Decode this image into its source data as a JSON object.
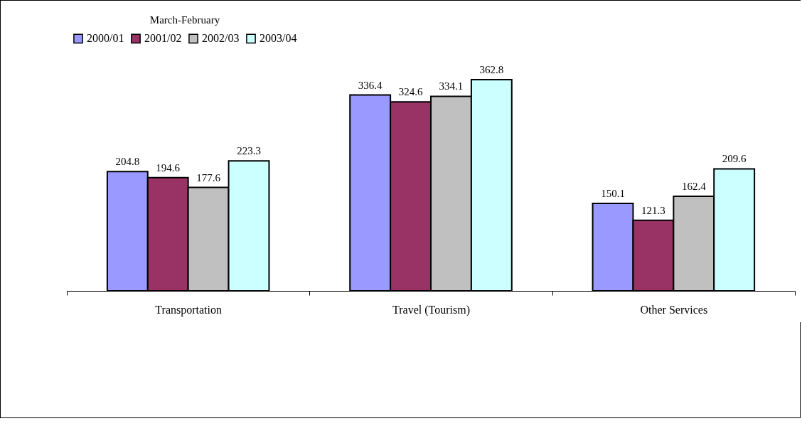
{
  "chart_data": {
    "type": "bar",
    "legend_title": "March-February",
    "categories": [
      "Transportation",
      "Travel (Tourism)",
      "Other Services"
    ],
    "series": [
      {
        "name": "2000/01",
        "color": "#9999ff",
        "values": [
          204.8,
          336.4,
          150.1
        ]
      },
      {
        "name": "2001/02",
        "color": "#993366",
        "values": [
          194.6,
          324.6,
          121.3
        ]
      },
      {
        "name": "2002/03",
        "color": "#c0c0c0",
        "values": [
          177.6,
          334.1,
          162.4
        ]
      },
      {
        "name": "2003/04",
        "color": "#ccffff",
        "values": [
          223.3,
          362.8,
          209.6
        ]
      }
    ],
    "data_labels": true,
    "legend": "top",
    "grid": false
  }
}
